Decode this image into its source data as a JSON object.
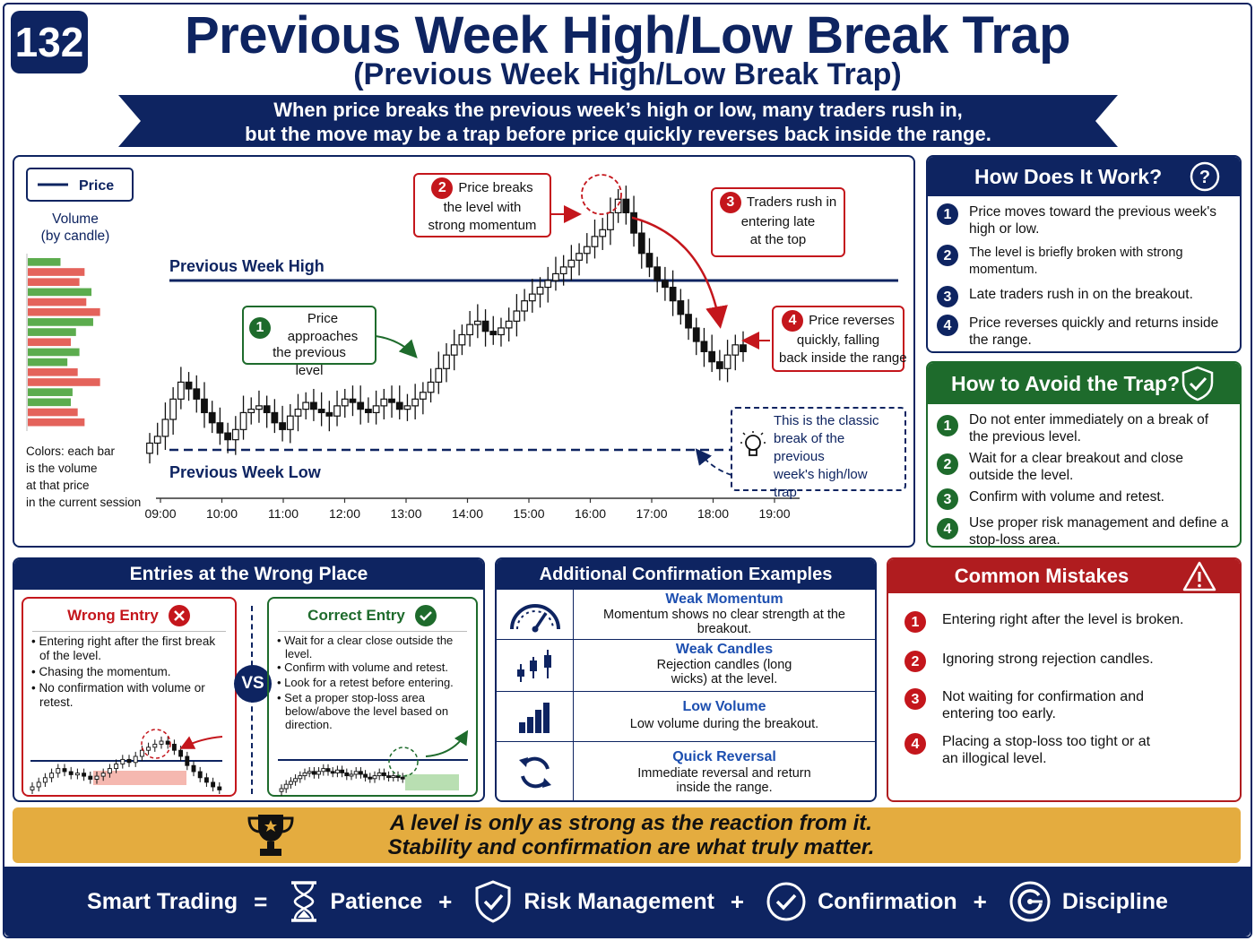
{
  "header": {
    "badge": "132",
    "title": "Previous Week High/Low Break Trap",
    "subtitle": "(Previous Week High/Low Break Trap)",
    "banner_line1": "When price breaks the previous week’s high or low, many traders rush in,",
    "banner_line2": "but the move may be a trap before price quickly reverses back inside the range."
  },
  "chart": {
    "legend_price": "Price",
    "volume_label_1": "Volume",
    "volume_label_2": "(by candle)",
    "colors_note": [
      "Colors: each bar",
      "is the volume",
      "at that price",
      "in the current session"
    ],
    "high_label": "Previous Week High",
    "low_label": "Previous Week Low",
    "callout1": [
      "Price approaches",
      "the previous",
      "level"
    ],
    "callout2": [
      "Price breaks",
      "the level with",
      "strong momentum"
    ],
    "callout3": [
      "Traders rush in",
      "entering late",
      "at the top"
    ],
    "callout4": [
      "Price reverses",
      "quickly, falling",
      "back inside the range"
    ],
    "classic_note": [
      "This is the classic",
      "break of the previous",
      "week's high/low",
      "trap"
    ]
  },
  "chart_data": {
    "type": "candlestick",
    "x_ticks": [
      "09:00",
      "10:00",
      "11:00",
      "12:00",
      "13:00",
      "14:00",
      "15:00",
      "16:00",
      "17:00",
      "18:00",
      "19:00"
    ],
    "levels": [
      {
        "name": "Previous Week High",
        "value": 100
      },
      {
        "name": "Previous Week Low",
        "value": 0
      }
    ],
    "close": [
      4,
      8,
      18,
      30,
      40,
      36,
      30,
      22,
      16,
      10,
      6,
      12,
      22,
      24,
      26,
      22,
      16,
      12,
      20,
      24,
      28,
      24,
      22,
      20,
      26,
      30,
      28,
      24,
      22,
      26,
      30,
      28,
      24,
      26,
      30,
      34,
      40,
      48,
      56,
      62,
      68,
      74,
      76,
      70,
      68,
      72,
      76,
      82,
      88,
      92,
      96,
      100,
      104,
      108,
      112,
      116,
      120,
      126,
      130,
      140,
      148,
      140,
      128,
      116,
      108,
      100,
      96,
      88,
      80,
      72,
      64,
      58,
      52,
      48,
      56,
      62,
      58
    ],
    "volume": [
      {
        "color": "green",
        "value": 0.38
      },
      {
        "color": "red",
        "value": 0.66
      },
      {
        "color": "red",
        "value": 0.6
      },
      {
        "color": "green",
        "value": 0.74
      },
      {
        "color": "red",
        "value": 0.68
      },
      {
        "color": "red",
        "value": 0.84
      },
      {
        "color": "green",
        "value": 0.76
      },
      {
        "color": "green",
        "value": 0.56
      },
      {
        "color": "red",
        "value": 0.5
      },
      {
        "color": "green",
        "value": 0.6
      },
      {
        "color": "green",
        "value": 0.46
      },
      {
        "color": "red",
        "value": 0.58
      },
      {
        "color": "red",
        "value": 0.84
      },
      {
        "color": "green",
        "value": 0.52
      },
      {
        "color": "green",
        "value": 0.5
      },
      {
        "color": "red",
        "value": 0.58
      },
      {
        "color": "red",
        "value": 0.66
      }
    ]
  },
  "how": {
    "title": "How Does It Work?",
    "items": [
      "Price moves toward the previous week's high or low.",
      "The level is briefly broken with strong momentum.",
      "Late traders rush in on the breakout.",
      "Price reverses quickly and returns inside the range."
    ]
  },
  "avoid": {
    "title": "How to Avoid the Trap?",
    "items": [
      "Do not enter immediately on a break of the previous level.",
      "Wait for a clear breakout and close outside the level.",
      "Confirm with volume and retest.",
      "Use proper risk management and define a stop-loss area."
    ]
  },
  "entries": {
    "title": "Entries at the Wrong Place",
    "wrong_title": "Wrong Entry",
    "wrong_items": [
      "Entering right after the first break of the level.",
      "Chasing the momentum.",
      "No confirmation with volume or retest."
    ],
    "vs": "VS",
    "correct_title": "Correct Entry",
    "correct_items": [
      "Wait for a clear close outside the level.",
      "Confirm with volume and retest.",
      "Look for a retest before entering.",
      "Set a proper stop-loss area below/above the level based on direction."
    ]
  },
  "confirm": {
    "title": "Additional Confirmation Examples",
    "rows": [
      {
        "icon": "gauge-icon",
        "title": "Weak Momentum",
        "desc": "Momentum shows no clear strength at the breakout."
      },
      {
        "icon": "candles-icon",
        "title": "Weak Candles",
        "desc": "Rejection candles (long wicks) at the level."
      },
      {
        "icon": "volume-bars-icon",
        "title": "Low Volume",
        "desc": "Low volume during the breakout."
      },
      {
        "icon": "reversal-icon",
        "title": "Quick Reversal",
        "desc": "Immediate reversal and return inside the range."
      }
    ]
  },
  "mistakes": {
    "title": "Common Mistakes",
    "items": [
      "Entering right after the level is broken.",
      "Ignoring strong rejection candles.",
      "Not waiting for confirmation and entering too early.",
      "Placing a stop-loss too tight or at an illogical level."
    ]
  },
  "quote": {
    "line1": "A level is only as strong as the reaction from it.",
    "line2": "Stability and confirmation are what truly matter."
  },
  "footer": {
    "lead": "Smart Trading",
    "eq": "=",
    "patience": "Patience",
    "plus": "+",
    "risk": "Risk Management",
    "confirmation": "Confirmation",
    "discipline": "Discipline"
  },
  "colors": {
    "navy": "#0e2461",
    "green": "#1e6b2c",
    "red": "#c4161c",
    "gold": "#e4ac3f"
  }
}
